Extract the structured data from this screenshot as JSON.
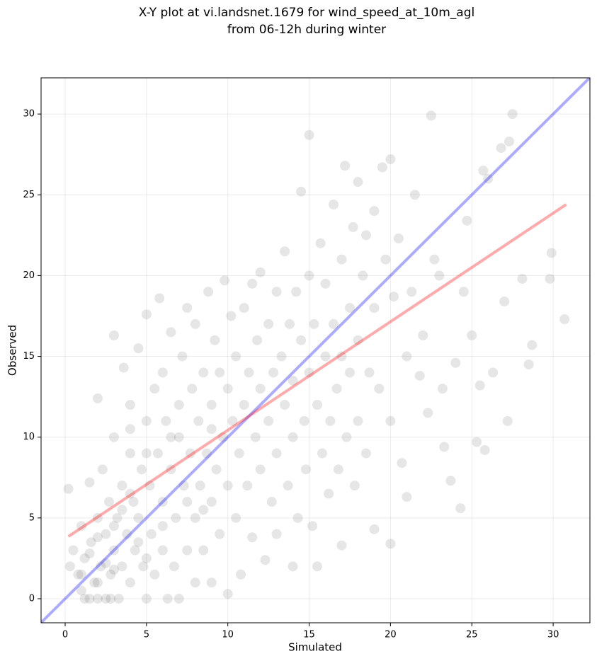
{
  "chart_data": {
    "type": "scatter",
    "title": [
      "X-Y plot at vi.landsnet.1679 for wind_speed_at_10m_agl",
      "from 06-12h during winter"
    ],
    "xlabel": "Simulated",
    "ylabel": "Observed",
    "xlim": [
      -1.48,
      32.26
    ],
    "ylim": [
      -1.49,
      32.24
    ],
    "xticks": [
      0,
      5,
      10,
      15,
      20,
      25,
      30
    ],
    "yticks": [
      0,
      5,
      10,
      15,
      20,
      25,
      30
    ],
    "grid": true,
    "points": {
      "color": "#555555",
      "x": [
        0.2,
        0.3,
        0.5,
        0.8,
        1,
        1,
        1.2,
        1.5,
        1.5,
        1.6,
        1.8,
        2,
        2,
        2,
        2.2,
        2.3,
        2.5,
        2.5,
        2.7,
        2.8,
        3,
        3,
        3,
        3.2,
        3.3,
        3.5,
        3.5,
        3.6,
        3.8,
        4,
        4,
        4,
        4.2,
        4.3,
        4.5,
        4.5,
        4.7,
        4.8,
        5,
        5,
        5,
        5.2,
        5.3,
        5.5,
        5.5,
        5.7,
        5.8,
        6,
        6,
        6,
        6.2,
        6.3,
        6.5,
        6.5,
        6.7,
        6.8,
        7,
        7,
        7,
        7.2,
        7.3,
        7.5,
        7.5,
        7.7,
        7.8,
        8,
        8,
        8,
        8.2,
        8.3,
        8.5,
        8.5,
        8.7,
        8.8,
        9,
        9,
        9,
        9.2,
        9.3,
        9.5,
        9.5,
        9.7,
        9.8,
        10,
        10,
        10,
        10.2,
        10.3,
        10.5,
        10.5,
        10.7,
        10.8,
        11,
        11,
        11.2,
        11.3,
        11.5,
        11.5,
        11.7,
        11.8,
        12,
        12,
        12,
        12.3,
        12.5,
        12.5,
        12.7,
        12.8,
        13,
        13,
        13,
        13.3,
        13.5,
        13.5,
        13.7,
        13.8,
        14,
        14,
        14,
        14.2,
        14.3,
        14.5,
        14.5,
        14.7,
        14.8,
        15,
        15,
        15,
        15.2,
        15.3,
        15.5,
        15.5,
        15.7,
        15.8,
        16,
        16,
        16.2,
        16.3,
        16.5,
        16.5,
        16.7,
        16.8,
        17,
        17,
        17,
        17.2,
        17.3,
        17.5,
        17.5,
        17.7,
        17.8,
        18,
        18,
        18,
        18.3,
        18.5,
        18.5,
        18.7,
        19,
        19,
        19,
        19.3,
        19.5,
        19.7,
        20,
        20,
        20,
        20.2,
        20.5,
        20.7,
        21,
        21,
        21.3,
        21.5,
        21.8,
        22,
        22.3,
        22.5,
        22.7,
        23,
        23.2,
        23.3,
        23.7,
        24,
        24.3,
        24.5,
        24.7,
        25,
        25.3,
        25.5,
        25.7,
        25.8,
        26,
        26.3,
        26.8,
        27,
        27.2,
        27.3,
        27.5,
        28.1,
        28.5,
        28.7,
        29.8,
        29.9,
        30.7,
        1,
        1.5,
        2,
        2.5,
        3,
        3.5,
        4,
        4.5,
        2,
        3,
        1.2,
        2.8,
        5,
        6,
        4,
        5,
        6.5,
        7.5,
        8.5,
        9
      ],
      "values": [
        6.8,
        2,
        3,
        1.5,
        0.5,
        4.5,
        2.5,
        0,
        7.2,
        3.5,
        1,
        0,
        5,
        12.4,
        2,
        8,
        4,
        0,
        6,
        1.5,
        3,
        10,
        16.3,
        5,
        0,
        2,
        7,
        14.3,
        4,
        9,
        1,
        12,
        6,
        3,
        15.5,
        5,
        8,
        2,
        11,
        0,
        17.6,
        7,
        4,
        13,
        1.5,
        9,
        18.6,
        6,
        3,
        14,
        11,
        0,
        8,
        16.5,
        2,
        5,
        12,
        10,
        0,
        15,
        7,
        3,
        18,
        9,
        13,
        5,
        1,
        17,
        11,
        7,
        14,
        3,
        9,
        19,
        6,
        12,
        1,
        16,
        8,
        4,
        14,
        10,
        19.7,
        7,
        13,
        0.3,
        17.5,
        11,
        5,
        15,
        9,
        1.5,
        12,
        18,
        7,
        14,
        3.8,
        19.5,
        10,
        16,
        8,
        13,
        20.2,
        2.4,
        11,
        17,
        6,
        14,
        9,
        19,
        4,
        15,
        12,
        21.5,
        7,
        17,
        10,
        13.5,
        2,
        19,
        5,
        16,
        25.2,
        11,
        8,
        14,
        20,
        28.7,
        4.5,
        17,
        12,
        2,
        22,
        9,
        15,
        19.5,
        6.5,
        11,
        24.4,
        17,
        13,
        8,
        21,
        15,
        3.3,
        26.8,
        10,
        18,
        14,
        23,
        7,
        16,
        25.8,
        11,
        20,
        9,
        22.5,
        14,
        24,
        18,
        4.3,
        13,
        26.7,
        21,
        11,
        3.4,
        27.2,
        18.7,
        22.3,
        8.4,
        15,
        6.3,
        19,
        25,
        13.8,
        16.3,
        11.5,
        29.9,
        21,
        20,
        13,
        9.4,
        7.3,
        14.6,
        5.6,
        19,
        23.4,
        16.3,
        9.7,
        13.2,
        26.5,
        9.2,
        26,
        14,
        27.9,
        18.4,
        11,
        28.3,
        30,
        19.8,
        14.5,
        15.7,
        19.8,
        21.4,
        17.3,
        1.5,
        2.8,
        3.8,
        2.2,
        4.5,
        5.5,
        6.5,
        3.5,
        1,
        1.8,
        0,
        0,
        2.5,
        4.5,
        10.5,
        9,
        10,
        6,
        5.5,
        10.5
      ]
    },
    "lines": [
      {
        "color": "#0000ff",
        "x": [
          -1.48,
          32.26
        ],
        "values": [
          -1.48,
          32.26
        ]
      },
      {
        "color": "#ff0000",
        "x": [
          0.2,
          30.8
        ],
        "values": [
          3.85,
          24.4
        ]
      }
    ]
  }
}
